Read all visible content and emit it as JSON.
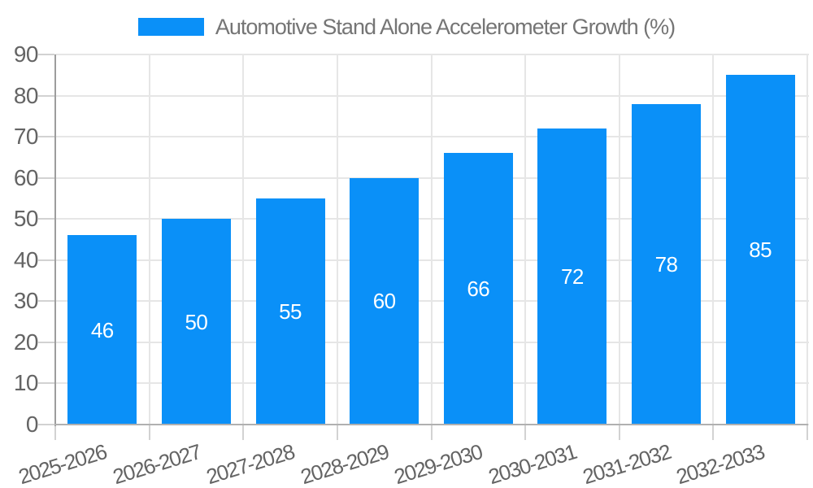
{
  "legend": {
    "label": "Automotive Stand Alone Accelerometer Growth (%)"
  },
  "chart_data": {
    "type": "bar",
    "title": "Automotive Stand Alone Accelerometer Growth (%)",
    "categories": [
      "2025-2026",
      "2026-2027",
      "2027-2028",
      "2028-2029",
      "2029-2030",
      "2030-2031",
      "2031-2032",
      "2032-2033"
    ],
    "values": [
      46,
      50,
      55,
      60,
      66,
      72,
      78,
      85
    ],
    "bar_labels": [
      "46",
      "50",
      "55",
      "60",
      "66",
      "72",
      "78",
      "85"
    ],
    "xlabel": "",
    "ylabel": "",
    "ylim": [
      0,
      90
    ],
    "yticks": [
      0,
      10,
      20,
      30,
      40,
      50,
      60,
      70,
      80,
      90
    ],
    "grid": true,
    "legend_position": "top",
    "colors": {
      "bar": "#0a90f8",
      "bar_label": "#ffffff",
      "gridline": "#e6e6e6",
      "tick": "#d2d2d2",
      "x_axis_line": "#b0b0b0",
      "y_axis_line": "#9d9d9d",
      "axis_text": "#646464",
      "title_text": "#757575",
      "background": "#ffffff"
    }
  }
}
